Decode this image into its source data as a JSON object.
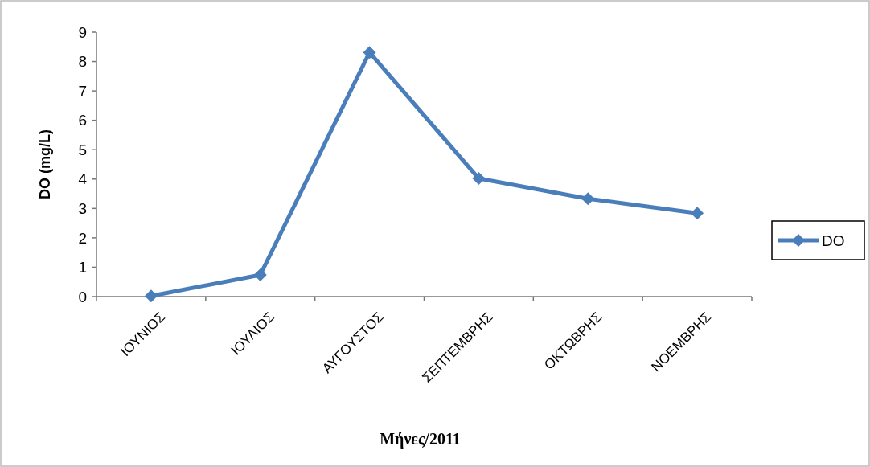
{
  "chart_data": {
    "type": "line",
    "xlabel": "Μήνες/2011",
    "ylabel": "DO (mg/L)",
    "categories": [
      "ΙΟΥΝΙΟΣ",
      "ΙΟΥΛΙΟΣ",
      "ΑΥΓΟΥΣΤΟΣ",
      "ΣΕΠΤΕΜΒΡΗΣ",
      "ΟΚΤΩΒΡΗΣ",
      "ΝΟΕΜΒΡΗΣ"
    ],
    "series": [
      {
        "name": "DO",
        "color": "#4a7ebb",
        "values": [
          0.02,
          0.74,
          8.31,
          4.02,
          3.33,
          2.84
        ]
      }
    ],
    "ylim": [
      0,
      9
    ],
    "yticks": [
      0,
      1,
      2,
      3,
      4,
      5,
      6,
      7,
      8,
      9
    ],
    "legend": "right",
    "marker": "diamond",
    "grid": false
  }
}
